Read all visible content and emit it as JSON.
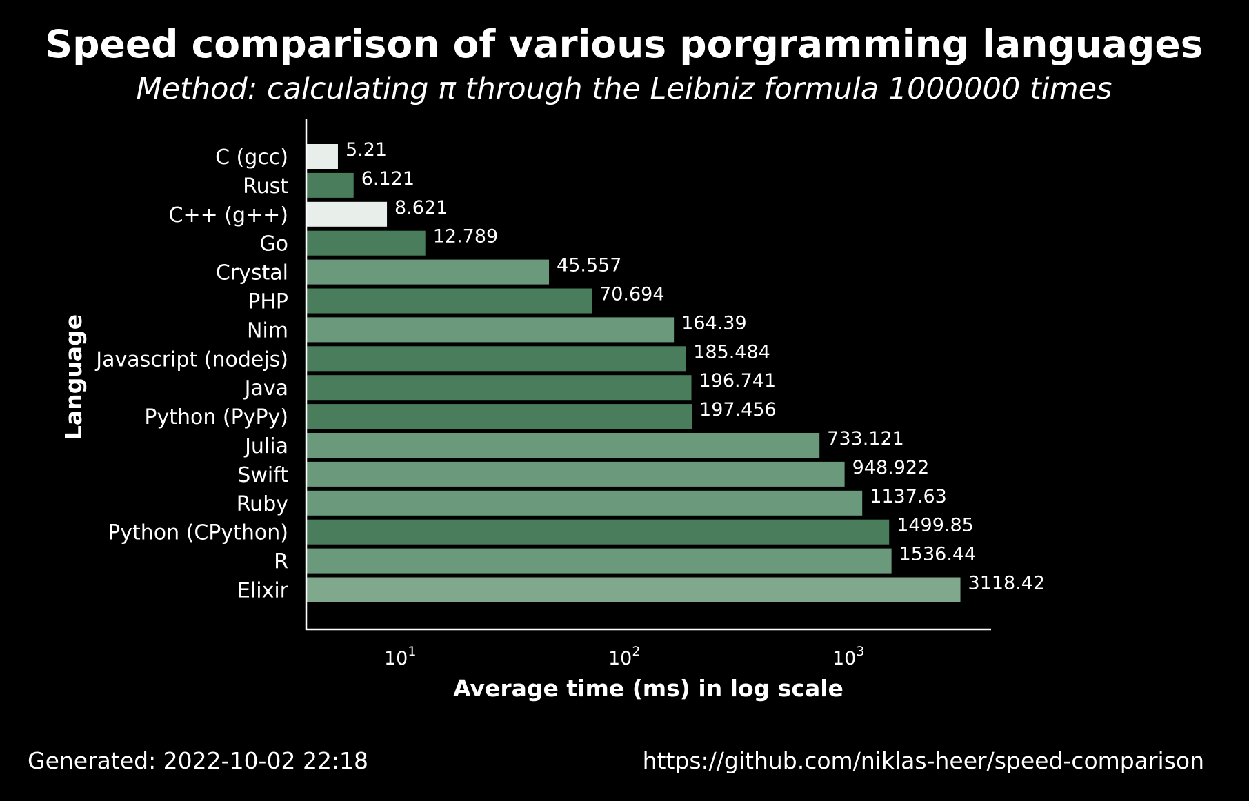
{
  "chart_data": {
    "type": "bar",
    "orientation": "horizontal",
    "title": "Speed comparison of various porgramming languages",
    "subtitle": "Method: calculating π through the Leibniz formula 1000000 times",
    "xlabel": "Average time (ms) in log scale",
    "ylabel": "Language",
    "xscale": "log",
    "xlim": [
      4.3,
      4500
    ],
    "x_ticks": [
      {
        "value": 10,
        "base": "10",
        "exp": "1"
      },
      {
        "value": 100,
        "base": "10",
        "exp": "2"
      },
      {
        "value": 1000,
        "base": "10",
        "exp": "3"
      }
    ],
    "grid": false,
    "categories": [
      "C (gcc)",
      "Rust",
      "C++ (g++)",
      "Go",
      "Crystal",
      "PHP",
      "Nim",
      "Javascript (nodejs)",
      "Java",
      "Python (PyPy)",
      "Julia",
      "Swift",
      "Ruby",
      "Python (CPython)",
      "R",
      "Elixir"
    ],
    "values": [
      5.21,
      6.121,
      8.621,
      12.789,
      45.557,
      70.694,
      164.39,
      185.484,
      196.741,
      197.456,
      733.121,
      948.922,
      1137.63,
      1499.85,
      1536.44,
      3118.42
    ],
    "value_labels": [
      "5.21",
      "6.121",
      "8.621",
      "12.789",
      "45.557",
      "70.694",
      "164.39",
      "185.484",
      "196.741",
      "197.456",
      "733.121",
      "948.922",
      "1137.63",
      "1499.85",
      "1536.44",
      "3118.42"
    ],
    "colors": [
      "#e8efea",
      "#4a7d5b",
      "#e8efea",
      "#4a7d5b",
      "#6a9a7b",
      "#4a7d5b",
      "#6a9a7b",
      "#4a7d5b",
      "#4a7d5b",
      "#4a7d5b",
      "#6a9a7b",
      "#6a9a7b",
      "#6a9a7b",
      "#4a7d5b",
      "#6a9a7b",
      "#7fa88c"
    ]
  },
  "footer": {
    "generated": "Generated: 2022-10-02 22:18",
    "url": "https://github.com/niklas-heer/speed-comparison"
  }
}
